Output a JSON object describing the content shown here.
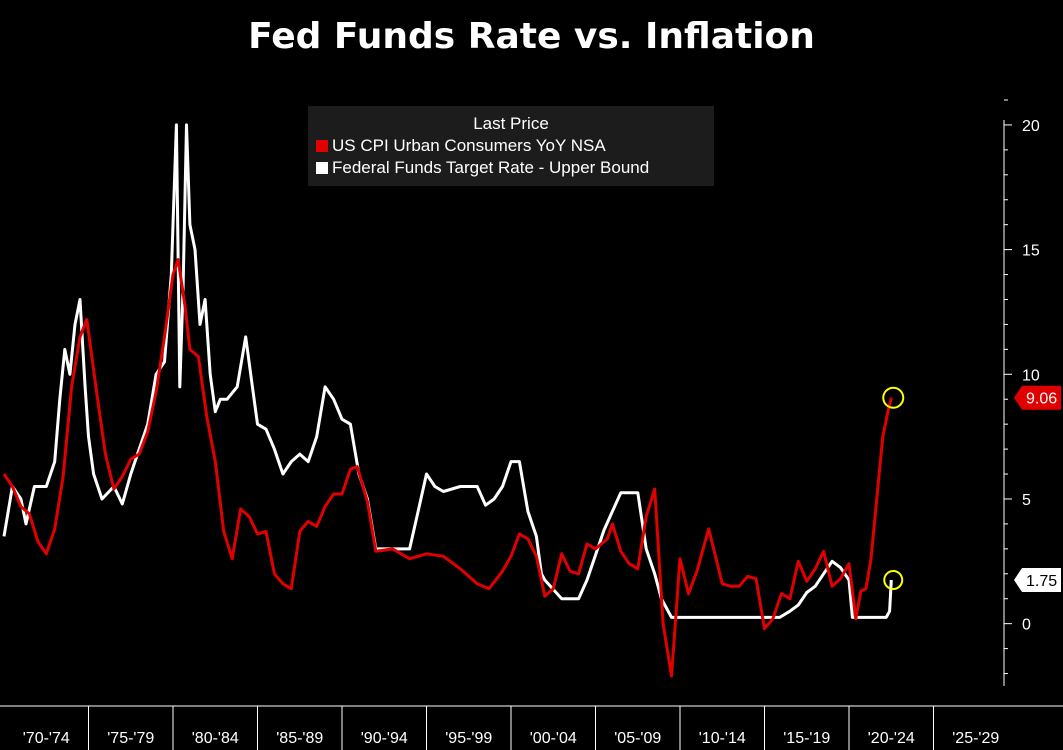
{
  "chart_data": {
    "type": "line",
    "title": "Fed Funds Rate vs. Inflation",
    "legend": {
      "header": "Last Price",
      "placement": "top-center",
      "items": [
        {
          "name": "US CPI Urban Consumers YoY NSA",
          "color": "#e00000"
        },
        {
          "name": "Federal Funds Target Rate - Upper Bound",
          "color": "#ffffff"
        }
      ]
    },
    "x_tick_labels": [
      "'70-'74",
      "'75-'79",
      "'80-'84",
      "'85-'89",
      "'90-'94",
      "'95-'99",
      "'00-'04",
      "'05-'09",
      "'10-'14",
      "'15-'19",
      "'20-'24",
      "'25-'29"
    ],
    "xlim": [
      1970,
      2030
    ],
    "y_ticks": [
      0,
      5,
      10,
      15,
      20
    ],
    "ylim": [
      -2.5,
      21
    ],
    "y_axis_position": "right",
    "grid": false,
    "last_values": {
      "cpi": "9.06",
      "fed": "1.75"
    },
    "series": [
      {
        "name": "US CPI Urban Consumers YoY NSA",
        "color": "#e00000",
        "x": [
          1970.0,
          1970.5,
          1971.0,
          1971.5,
          1972.0,
          1972.5,
          1973.0,
          1973.5,
          1974.0,
          1974.5,
          1974.9,
          1975.5,
          1976.0,
          1976.5,
          1977.0,
          1977.5,
          1978.0,
          1978.5,
          1979.0,
          1979.5,
          1980.0,
          1980.3,
          1980.7,
          1981.0,
          1981.5,
          1982.0,
          1982.5,
          1983.0,
          1983.5,
          1984.0,
          1984.5,
          1985.0,
          1985.5,
          1986.0,
          1986.5,
          1987.0,
          1987.5,
          1988.0,
          1988.5,
          1989.0,
          1989.5,
          1990.0,
          1990.5,
          1990.9,
          1991.5,
          1992.0,
          1993.0,
          1994.0,
          1995.0,
          1996.0,
          1997.0,
          1998.0,
          1998.7,
          1999.5,
          2000.0,
          2000.5,
          2001.0,
          2001.5,
          2002.0,
          2002.5,
          2003.0,
          2003.5,
          2004.0,
          2004.5,
          2005.0,
          2005.7,
          2006.0,
          2006.5,
          2007.0,
          2007.5,
          2008.0,
          2008.5,
          2009.0,
          2009.5,
          2010.0,
          2010.5,
          2011.0,
          2011.7,
          2012.5,
          2013.0,
          2013.5,
          2014.0,
          2014.5,
          2015.0,
          2015.5,
          2016.0,
          2016.5,
          2017.0,
          2017.5,
          2018.0,
          2018.5,
          2019.0,
          2019.5,
          2020.0,
          2020.4,
          2020.7,
          2021.0,
          2021.3,
          2021.7,
          2022.0,
          2022.3,
          2022.5
        ],
        "values": [
          6.0,
          5.5,
          4.7,
          4.4,
          3.3,
          2.8,
          3.8,
          5.9,
          9.5,
          11.5,
          12.2,
          9.2,
          6.8,
          5.4,
          5.9,
          6.6,
          6.8,
          7.7,
          9.3,
          11.5,
          14.0,
          14.6,
          12.8,
          11.0,
          10.7,
          8.3,
          6.5,
          3.7,
          2.6,
          4.6,
          4.3,
          3.6,
          3.7,
          2.0,
          1.6,
          1.4,
          3.7,
          4.1,
          3.9,
          4.7,
          5.2,
          5.2,
          6.2,
          6.3,
          4.9,
          2.9,
          3.0,
          2.6,
          2.8,
          2.7,
          2.2,
          1.6,
          1.4,
          2.1,
          2.7,
          3.6,
          3.4,
          2.7,
          1.1,
          1.4,
          2.8,
          2.1,
          2.0,
          3.2,
          3.0,
          3.4,
          4.0,
          2.9,
          2.4,
          2.2,
          4.3,
          5.4,
          0.0,
          -2.1,
          2.6,
          1.2,
          2.1,
          3.8,
          1.6,
          1.5,
          1.5,
          1.9,
          1.8,
          -0.2,
          0.2,
          1.2,
          1.0,
          2.5,
          1.7,
          2.2,
          2.9,
          1.5,
          1.8,
          2.4,
          0.2,
          1.3,
          1.4,
          2.6,
          5.4,
          7.5,
          8.5,
          9.06
        ]
      },
      {
        "name": "Federal Funds Target Rate - Upper Bound",
        "color": "#ffffff",
        "x": [
          1970.0,
          1970.5,
          1971.0,
          1971.3,
          1971.8,
          1972.5,
          1973.0,
          1973.3,
          1973.6,
          1973.9,
          1974.2,
          1974.5,
          1974.8,
          1975.0,
          1975.3,
          1975.8,
          1976.5,
          1977.0,
          1977.5,
          1978.0,
          1978.5,
          1979.0,
          1979.5,
          1979.9,
          1980.2,
          1980.4,
          1980.6,
          1980.8,
          1981.0,
          1981.3,
          1981.6,
          1981.9,
          1982.2,
          1982.5,
          1982.8,
          1983.2,
          1983.8,
          1984.3,
          1984.7,
          1985.0,
          1985.5,
          1986.0,
          1986.5,
          1987.0,
          1987.5,
          1988.0,
          1988.5,
          1989.0,
          1989.5,
          1990.0,
          1990.5,
          1991.0,
          1991.5,
          1992.0,
          1993.0,
          1994.0,
          1994.5,
          1995.0,
          1995.5,
          1996.0,
          1997.0,
          1998.0,
          1998.5,
          1999.0,
          1999.5,
          2000.0,
          2000.5,
          2001.0,
          2001.5,
          2001.8,
          2002.0,
          2003.0,
          2004.0,
          2004.5,
          2005.0,
          2005.5,
          2006.0,
          2006.5,
          2007.0,
          2007.5,
          2008.0,
          2008.5,
          2008.9,
          2009.5,
          2012.0,
          2015.9,
          2016.5,
          2017.0,
          2017.5,
          2018.0,
          2018.5,
          2019.0,
          2019.5,
          2020.0,
          2020.2,
          2021.0,
          2021.9,
          2022.2,
          2022.4,
          2022.5
        ],
        "values": [
          3.5,
          5.5,
          5.0,
          4.0,
          5.5,
          5.5,
          6.5,
          9.0,
          11.0,
          10.0,
          12.0,
          13.0,
          9.5,
          7.5,
          6.0,
          5.0,
          5.5,
          4.8,
          6.0,
          7.0,
          8.0,
          10.0,
          10.5,
          14.0,
          20.0,
          9.5,
          13.5,
          20.0,
          16.0,
          15.0,
          12.0,
          13.0,
          10.0,
          8.5,
          9.0,
          9.0,
          9.5,
          11.5,
          9.5,
          8.0,
          7.8,
          7.0,
          6.0,
          6.5,
          6.8,
          6.5,
          7.5,
          9.5,
          9.0,
          8.2,
          8.0,
          6.0,
          5.0,
          3.0,
          3.0,
          3.0,
          4.5,
          6.0,
          5.5,
          5.3,
          5.5,
          5.5,
          4.75,
          5.0,
          5.5,
          6.5,
          6.5,
          4.5,
          3.5,
          2.0,
          1.75,
          1.0,
          1.0,
          1.75,
          2.75,
          3.75,
          4.5,
          5.25,
          5.25,
          5.25,
          3.0,
          2.0,
          1.0,
          0.25,
          0.25,
          0.25,
          0.5,
          0.75,
          1.25,
          1.5,
          2.0,
          2.5,
          2.25,
          1.75,
          0.25,
          0.25,
          0.25,
          0.25,
          0.5,
          1.75
        ]
      }
    ]
  }
}
